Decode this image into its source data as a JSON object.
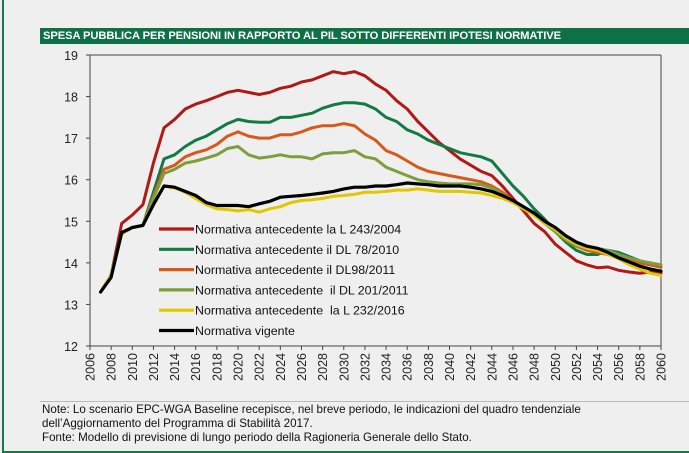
{
  "title": "SPESA PUBBLICA PER PENSIONI IN RAPPORTO AL PIL SOTTO DIFFERENTI IPOTESI NORMATIVE",
  "notes": [
    "Note: Lo scenario EPC-WGA Baseline recepisce, nel breve periodo, le indicazioni del quadro tendenziale",
    "dell’Aggiornamento del Programma di Stabilità 2017.",
    "Fonte: Modello di previsione di lungo periodo della Ragioneria Generale dello Stato."
  ],
  "colors": {
    "title_bg": "#0e7046",
    "frame": "#137a4c"
  },
  "chart_data": {
    "type": "line",
    "title": "SPESA PUBBLICA PER PENSIONI IN RAPPORTO AL PIL SOTTO DIFFERENTI IPOTESI NORMATIVE",
    "xlabel": "",
    "ylabel": "",
    "xlim": [
      2006,
      2060
    ],
    "ylim": [
      12,
      19
    ],
    "yticks": [
      "12",
      "13",
      "14",
      "15",
      "16",
      "17",
      "18",
      "19"
    ],
    "xticks": [
      "2006",
      "2008",
      "2010",
      "2012",
      "2014",
      "2016",
      "2018",
      "2020",
      "2022",
      "2024",
      "2026",
      "2028",
      "2030",
      "2032",
      "2034",
      "2036",
      "2038",
      "2040",
      "2042",
      "2044",
      "2046",
      "2048",
      "2050",
      "2052",
      "2054",
      "2056",
      "2058",
      "2060"
    ],
    "legend_position": "center-left",
    "grid": false,
    "x": [
      2007,
      2008,
      2009,
      2010,
      2011,
      2012,
      2013,
      2014,
      2015,
      2016,
      2017,
      2018,
      2019,
      2020,
      2021,
      2022,
      2023,
      2024,
      2025,
      2026,
      2027,
      2028,
      2029,
      2030,
      2031,
      2032,
      2033,
      2034,
      2035,
      2036,
      2037,
      2038,
      2039,
      2040,
      2041,
      2042,
      2043,
      2044,
      2045,
      2046,
      2047,
      2048,
      2049,
      2050,
      2051,
      2052,
      2053,
      2054,
      2055,
      2056,
      2057,
      2058,
      2059,
      2060
    ],
    "series": [
      {
        "name": "Normativa antecedente la L 243/2004",
        "color": "#b01a14",
        "values": [
          13.3,
          13.7,
          14.95,
          15.15,
          15.4,
          16.4,
          17.25,
          17.45,
          17.7,
          17.82,
          17.9,
          18.0,
          18.1,
          18.15,
          18.1,
          18.05,
          18.1,
          18.2,
          18.25,
          18.35,
          18.4,
          18.5,
          18.6,
          18.55,
          18.6,
          18.5,
          18.3,
          18.15,
          17.9,
          17.7,
          17.4,
          17.15,
          16.9,
          16.7,
          16.5,
          16.35,
          16.2,
          16.1,
          15.85,
          15.55,
          15.25,
          14.95,
          14.75,
          14.45,
          14.25,
          14.05,
          13.95,
          13.88,
          13.9,
          13.82,
          13.78,
          13.75,
          13.78,
          13.75
        ]
      },
      {
        "name": "Normativa antecedente il DL 78/2010",
        "color": "#137a45",
        "values": [
          13.3,
          13.7,
          14.7,
          14.85,
          14.9,
          15.7,
          16.5,
          16.6,
          16.8,
          16.95,
          17.05,
          17.2,
          17.35,
          17.45,
          17.4,
          17.38,
          17.38,
          17.5,
          17.5,
          17.55,
          17.6,
          17.72,
          17.8,
          17.85,
          17.85,
          17.82,
          17.7,
          17.5,
          17.4,
          17.2,
          17.1,
          16.95,
          16.85,
          16.75,
          16.65,
          16.6,
          16.55,
          16.45,
          16.15,
          15.85,
          15.6,
          15.3,
          15.05,
          14.75,
          14.5,
          14.3,
          14.2,
          14.2,
          14.3,
          14.25,
          14.15,
          14.05,
          13.95,
          13.9
        ]
      },
      {
        "name": "Normativa antecedente il DL98/2011",
        "color": "#d65a1a",
        "values": [
          13.3,
          13.7,
          14.7,
          14.85,
          14.9,
          15.6,
          16.25,
          16.35,
          16.55,
          16.65,
          16.72,
          16.85,
          17.05,
          17.15,
          17.05,
          17.0,
          17.0,
          17.08,
          17.08,
          17.15,
          17.25,
          17.3,
          17.3,
          17.35,
          17.3,
          17.1,
          16.95,
          16.7,
          16.6,
          16.45,
          16.3,
          16.2,
          16.15,
          16.1,
          16.05,
          16.0,
          15.95,
          15.85,
          15.7,
          15.5,
          15.3,
          15.15,
          14.95,
          14.75,
          14.55,
          14.4,
          14.3,
          14.25,
          14.2,
          14.15,
          14.1,
          14.0,
          13.95,
          13.9
        ]
      },
      {
        "name": "Normativa antecedente  il DL 201/2011",
        "color": "#7d9e3c",
        "values": [
          13.3,
          13.7,
          14.7,
          14.85,
          14.9,
          15.55,
          16.15,
          16.25,
          16.4,
          16.45,
          16.52,
          16.6,
          16.75,
          16.8,
          16.6,
          16.52,
          16.55,
          16.6,
          16.55,
          16.55,
          16.5,
          16.62,
          16.65,
          16.65,
          16.7,
          16.55,
          16.5,
          16.3,
          16.2,
          16.1,
          16.0,
          15.95,
          15.92,
          15.9,
          15.9,
          15.9,
          15.88,
          15.8,
          15.65,
          15.5,
          15.35,
          15.15,
          14.95,
          14.75,
          14.55,
          14.4,
          14.35,
          14.35,
          14.3,
          14.2,
          14.12,
          14.05,
          14.0,
          13.95
        ]
      },
      {
        "name": "Normativa antecedente  la L 232/2016",
        "color": "#e0c800",
        "values": [
          13.3,
          13.7,
          14.7,
          14.85,
          14.9,
          15.4,
          15.85,
          15.8,
          15.7,
          15.55,
          15.4,
          15.3,
          15.28,
          15.25,
          15.28,
          15.22,
          15.3,
          15.35,
          15.45,
          15.5,
          15.52,
          15.55,
          15.6,
          15.62,
          15.65,
          15.7,
          15.7,
          15.72,
          15.75,
          15.75,
          15.78,
          15.75,
          15.72,
          15.72,
          15.72,
          15.7,
          15.68,
          15.62,
          15.55,
          15.45,
          15.3,
          15.15,
          14.95,
          14.8,
          14.6,
          14.45,
          14.35,
          14.3,
          14.2,
          14.1,
          13.95,
          13.85,
          13.75,
          13.7
        ]
      },
      {
        "name": "Normativa vigente",
        "color": "#000000",
        "values": [
          13.3,
          13.65,
          14.73,
          14.85,
          14.9,
          15.4,
          15.85,
          15.82,
          15.72,
          15.62,
          15.45,
          15.38,
          15.38,
          15.38,
          15.35,
          15.42,
          15.48,
          15.58,
          15.6,
          15.62,
          15.65,
          15.68,
          15.72,
          15.78,
          15.82,
          15.82,
          15.85,
          15.85,
          15.88,
          15.92,
          15.9,
          15.88,
          15.85,
          15.85,
          15.85,
          15.82,
          15.78,
          15.72,
          15.62,
          15.5,
          15.35,
          15.2,
          15.0,
          14.85,
          14.65,
          14.5,
          14.4,
          14.35,
          14.25,
          14.12,
          14.02,
          13.92,
          13.85,
          13.8
        ]
      }
    ]
  }
}
